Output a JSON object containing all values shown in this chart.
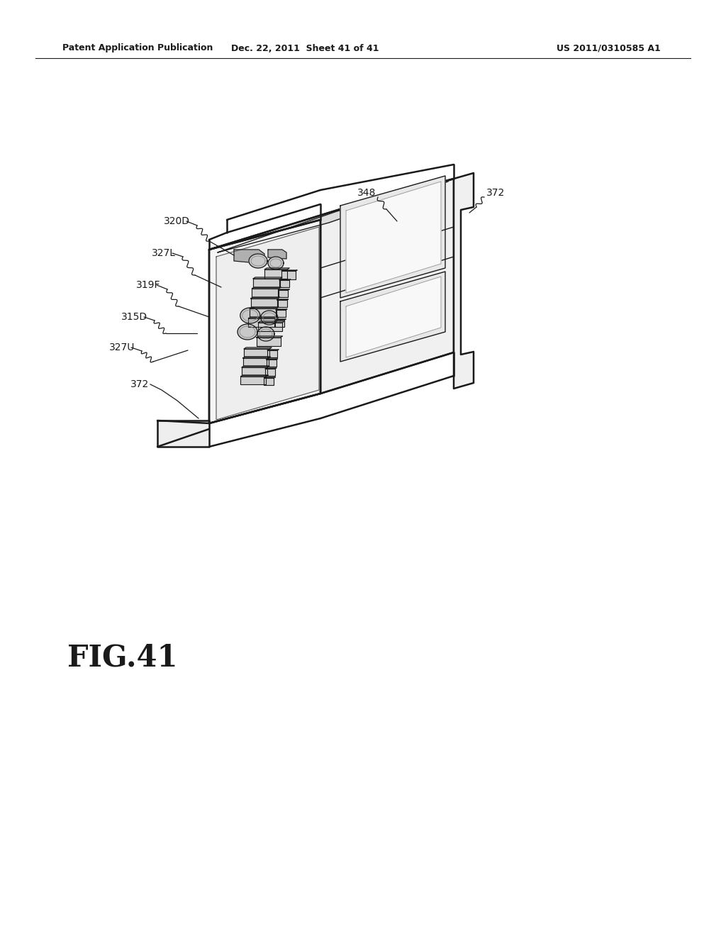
{
  "background_color": "#ffffff",
  "header_left": "Patent Application Publication",
  "header_center": "Dec. 22, 2011  Sheet 41 of 41",
  "header_right": "US 2011/0310585 A1",
  "figure_label": "FIG.41",
  "line_color": "#1a1a1a",
  "lw_main": 1.8,
  "lw_thin": 1.0,
  "lw_label": 0.9,
  "face_front": "#f5f5f5",
  "face_top": "#e8e8e8",
  "face_right": "#f0f0f0",
  "face_right_dark": "#e0e0e0",
  "window_fill": "#e8e8e8",
  "pin_fill": "#d0d0d0",
  "header_font_size": 9,
  "label_font_size": 10,
  "fig_label_font_size": 30
}
